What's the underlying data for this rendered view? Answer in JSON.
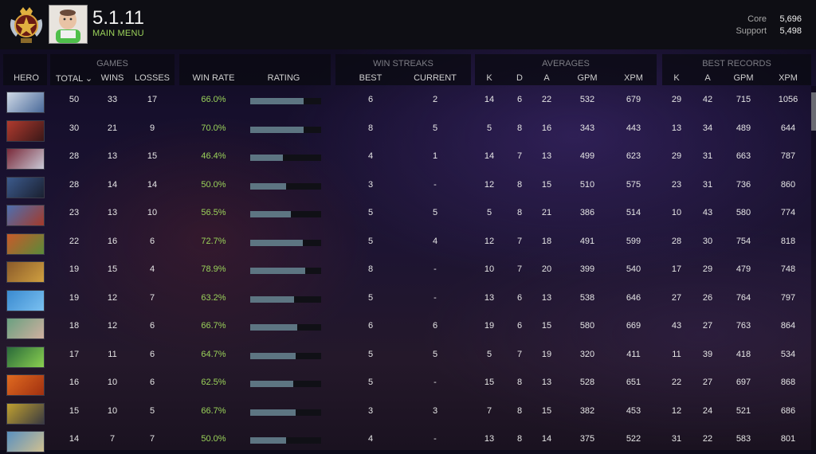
{
  "header": {
    "title": "5.1.11",
    "subtitle": "MAIN MENU",
    "mmr": [
      {
        "label": "Core",
        "value": "5,696"
      },
      {
        "label": "Support",
        "value": "5,498"
      }
    ]
  },
  "groups": {
    "games": "GAMES",
    "win_streaks": "WIN STREAKS",
    "averages": "AVERAGES",
    "best_records": "BEST RECORDS"
  },
  "columns": {
    "hero": "HERO",
    "total": "TOTAL ⌄",
    "wins": "WINS",
    "losses": "LOSSES",
    "win_rate": "WIN RATE",
    "rating": "RATING",
    "streak_best": "BEST",
    "streak_current": "CURRENT",
    "avg_k": "K",
    "avg_d": "D",
    "avg_a": "A",
    "avg_gpm": "GPM",
    "avg_xpm": "XPM",
    "best_k": "K",
    "best_a": "A",
    "best_gpm": "GPM",
    "best_xpm": "XPM"
  },
  "rows": [
    {
      "total": "50",
      "wins": "33",
      "losses": "17",
      "wr": "66.0%",
      "rating": 0.75,
      "sb": "6",
      "sc": "2",
      "k": "14",
      "d": "6",
      "a": "22",
      "gpm": "532",
      "xpm": "679",
      "bk": "29",
      "ba": "42",
      "bgpm": "715",
      "bxpm": "1056",
      "c1": "#cfd9e6",
      "c2": "#4a6a9a"
    },
    {
      "total": "30",
      "wins": "21",
      "losses": "9",
      "wr": "70.0%",
      "rating": 0.75,
      "sb": "8",
      "sc": "5",
      "k": "5",
      "d": "8",
      "a": "16",
      "gpm": "343",
      "xpm": "443",
      "bk": "13",
      "ba": "34",
      "bgpm": "489",
      "bxpm": "644",
      "c1": "#b03a2e",
      "c2": "#3a1818"
    },
    {
      "total": "28",
      "wins": "13",
      "losses": "15",
      "wr": "46.4%",
      "rating": 0.46,
      "sb": "4",
      "sc": "1",
      "k": "14",
      "d": "7",
      "a": "13",
      "gpm": "499",
      "xpm": "623",
      "bk": "29",
      "ba": "31",
      "bgpm": "663",
      "bxpm": "787",
      "c1": "#7a2a3a",
      "c2": "#c9c9d6"
    },
    {
      "total": "28",
      "wins": "14",
      "losses": "14",
      "wr": "50.0%",
      "rating": 0.5,
      "sb": "3",
      "sc": "-",
      "k": "12",
      "d": "8",
      "a": "15",
      "gpm": "510",
      "xpm": "575",
      "bk": "23",
      "ba": "31",
      "bgpm": "736",
      "bxpm": "860",
      "c1": "#3c5a8c",
      "c2": "#1a2030"
    },
    {
      "total": "23",
      "wins": "13",
      "losses": "10",
      "wr": "56.5%",
      "rating": 0.57,
      "sb": "5",
      "sc": "5",
      "k": "5",
      "d": "8",
      "a": "21",
      "gpm": "386",
      "xpm": "514",
      "bk": "10",
      "ba": "43",
      "bgpm": "580",
      "bxpm": "774",
      "c1": "#4d6fb0",
      "c2": "#a33a2a"
    },
    {
      "total": "22",
      "wins": "16",
      "losses": "6",
      "wr": "72.7%",
      "rating": 0.74,
      "sb": "5",
      "sc": "4",
      "k": "12",
      "d": "7",
      "a": "18",
      "gpm": "491",
      "xpm": "599",
      "bk": "28",
      "ba": "30",
      "bgpm": "754",
      "bxpm": "818",
      "c1": "#c85a2a",
      "c2": "#5a8a3a"
    },
    {
      "total": "19",
      "wins": "15",
      "losses": "4",
      "wr": "78.9%",
      "rating": 0.78,
      "sb": "8",
      "sc": "-",
      "k": "10",
      "d": "7",
      "a": "20",
      "gpm": "399",
      "xpm": "540",
      "bk": "17",
      "ba": "29",
      "bgpm": "479",
      "bxpm": "748",
      "c1": "#8a5a2a",
      "c2": "#d0a040"
    },
    {
      "total": "19",
      "wins": "12",
      "losses": "7",
      "wr": "63.2%",
      "rating": 0.62,
      "sb": "5",
      "sc": "-",
      "k": "13",
      "d": "6",
      "a": "13",
      "gpm": "538",
      "xpm": "646",
      "bk": "27",
      "ba": "26",
      "bgpm": "764",
      "bxpm": "797",
      "c1": "#3a8ad0",
      "c2": "#7ac0f0"
    },
    {
      "total": "18",
      "wins": "12",
      "losses": "6",
      "wr": "66.7%",
      "rating": 0.66,
      "sb": "6",
      "sc": "6",
      "k": "19",
      "d": "6",
      "a": "15",
      "gpm": "580",
      "xpm": "669",
      "bk": "43",
      "ba": "27",
      "bgpm": "763",
      "bxpm": "864",
      "c1": "#6aa080",
      "c2": "#d0b0a0"
    },
    {
      "total": "17",
      "wins": "11",
      "losses": "6",
      "wr": "64.7%",
      "rating": 0.64,
      "sb": "5",
      "sc": "5",
      "k": "5",
      "d": "7",
      "a": "19",
      "gpm": "320",
      "xpm": "411",
      "bk": "11",
      "ba": "39",
      "bgpm": "418",
      "bxpm": "534",
      "c1": "#2a6a3a",
      "c2": "#8ad050"
    },
    {
      "total": "16",
      "wins": "10",
      "losses": "6",
      "wr": "62.5%",
      "rating": 0.61,
      "sb": "5",
      "sc": "-",
      "k": "15",
      "d": "8",
      "a": "13",
      "gpm": "528",
      "xpm": "651",
      "bk": "22",
      "ba": "27",
      "bgpm": "697",
      "bxpm": "868",
      "c1": "#e06a20",
      "c2": "#a03010"
    },
    {
      "total": "15",
      "wins": "10",
      "losses": "5",
      "wr": "66.7%",
      "rating": 0.64,
      "sb": "3",
      "sc": "3",
      "k": "7",
      "d": "8",
      "a": "15",
      "gpm": "382",
      "xpm": "453",
      "bk": "12",
      "ba": "24",
      "bgpm": "521",
      "bxpm": "686",
      "c1": "#c0a030",
      "c2": "#3a3a40"
    },
    {
      "total": "14",
      "wins": "7",
      "losses": "7",
      "wr": "50.0%",
      "rating": 0.5,
      "sb": "4",
      "sc": "-",
      "k": "13",
      "d": "8",
      "a": "14",
      "gpm": "375",
      "xpm": "522",
      "bk": "31",
      "ba": "22",
      "bgpm": "583",
      "bxpm": "801",
      "c1": "#5a90c0",
      "c2": "#d0c090"
    }
  ]
}
